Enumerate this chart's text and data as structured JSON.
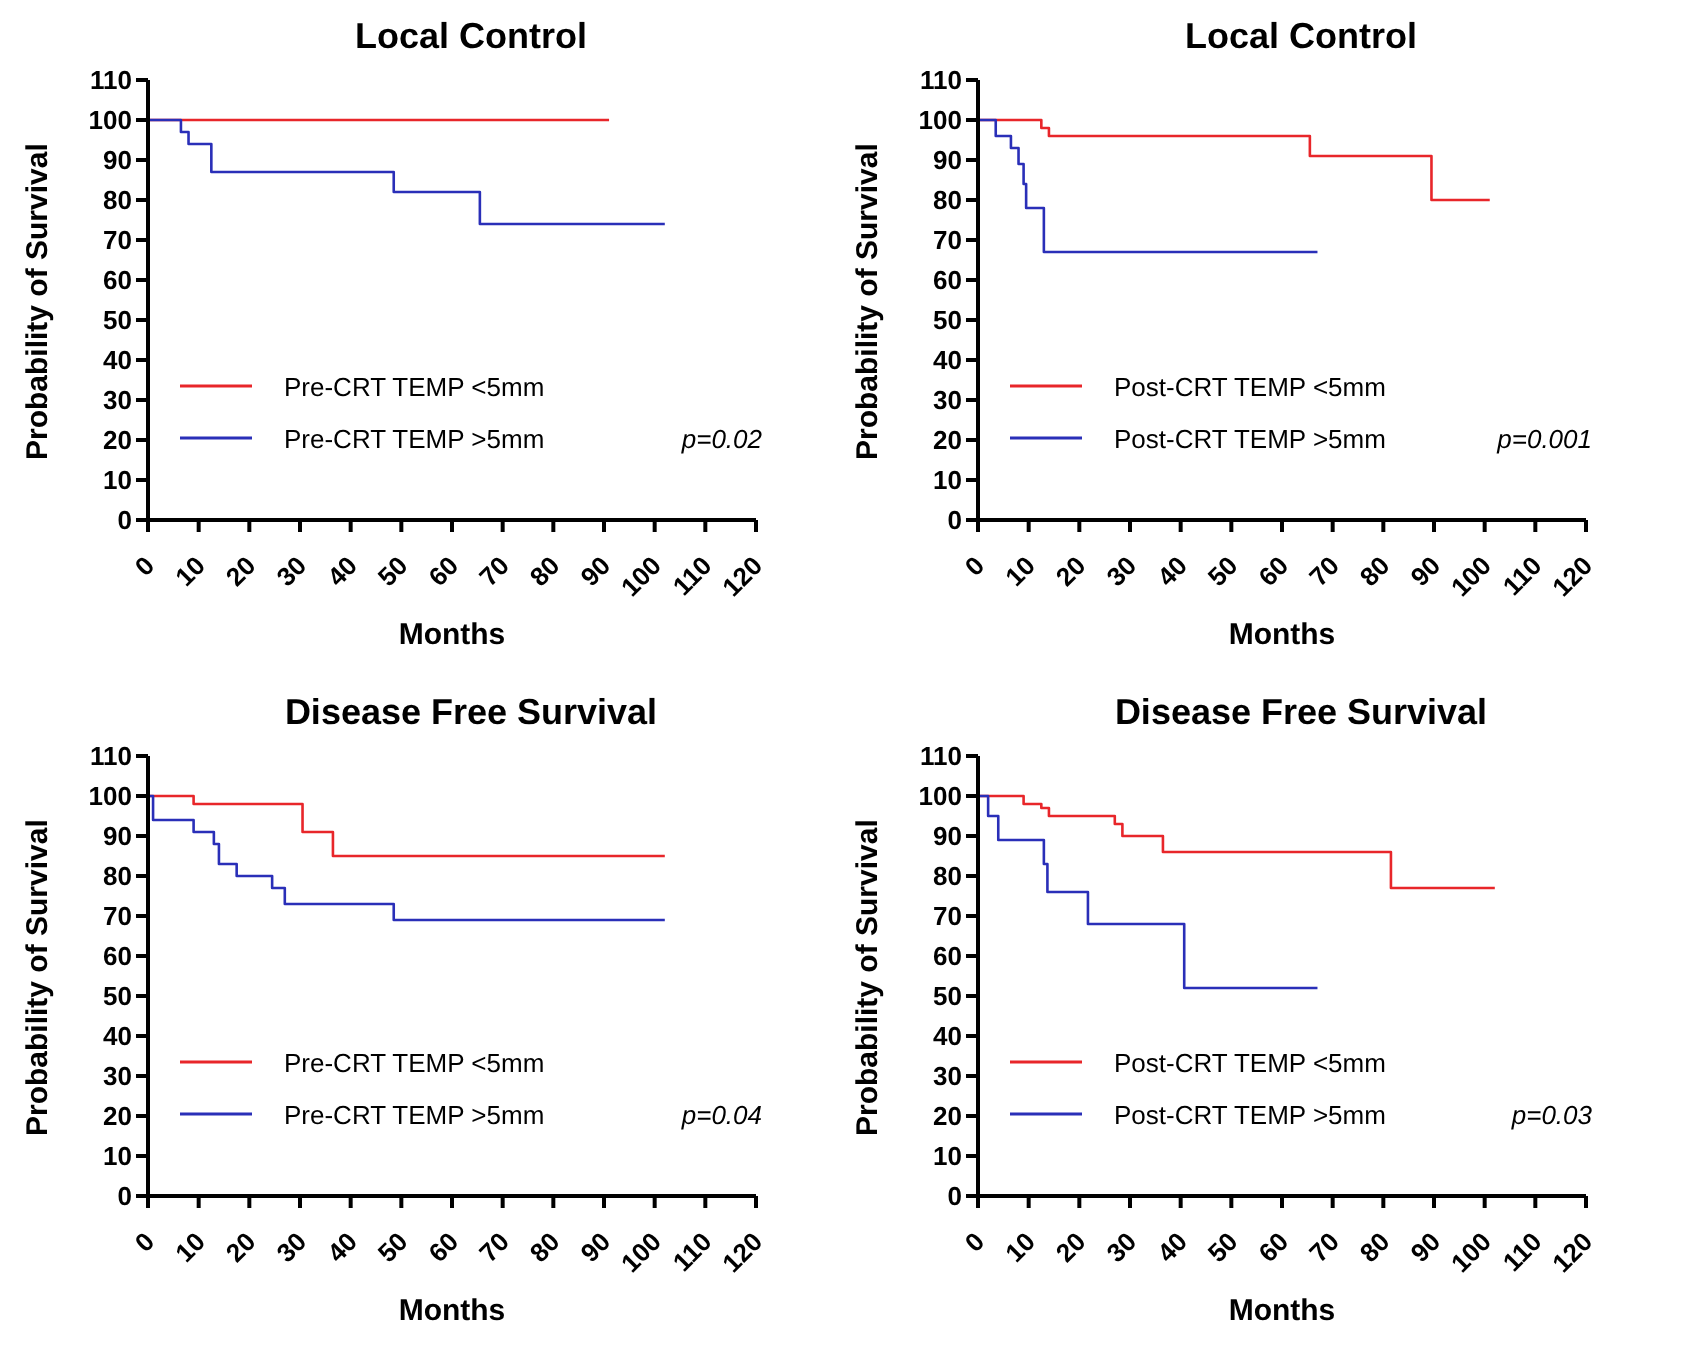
{
  "chart_data": [
    {
      "type": "step",
      "title": "Local Control",
      "xlabel": "Months",
      "ylabel": "Probability of Survival",
      "xlim": [
        0,
        120
      ],
      "xticks": [
        0,
        10,
        20,
        30,
        40,
        50,
        60,
        70,
        80,
        90,
        100,
        110,
        120
      ],
      "ylim": [
        0,
        110
      ],
      "yticks": [
        0,
        10,
        20,
        30,
        40,
        50,
        60,
        70,
        80,
        90,
        100,
        110
      ],
      "grid": false,
      "legend": "bottom left",
      "annotations": [
        "p=0.02"
      ],
      "series": [
        {
          "name": "Pre-CRT TEMP <5mm",
          "color": "#e8262a",
          "x": [
            0,
            91
          ],
          "values": [
            100,
            100
          ]
        },
        {
          "name": "Pre-CRT TEMP >5mm",
          "color": "#2a2fb8",
          "x": [
            0,
            6.5,
            8,
            12.5,
            48.5,
            65.5,
            102
          ],
          "values": [
            100,
            97,
            94,
            87,
            82,
            74,
            74
          ]
        }
      ]
    },
    {
      "type": "step",
      "title": "Local Control",
      "xlabel": "Months",
      "ylabel": "Probability of Survival",
      "xlim": [
        0,
        120
      ],
      "xticks": [
        0,
        10,
        20,
        30,
        40,
        50,
        60,
        70,
        80,
        90,
        100,
        110,
        120
      ],
      "ylim": [
        0,
        110
      ],
      "yticks": [
        0,
        10,
        20,
        30,
        40,
        50,
        60,
        70,
        80,
        90,
        100,
        110
      ],
      "grid": false,
      "legend": "bottom left",
      "annotations": [
        "p=0.001"
      ],
      "series": [
        {
          "name": "Post-CRT TEMP <5mm",
          "color": "#e8262a",
          "x": [
            0,
            12.5,
            14,
            65.5,
            89.5,
            101
          ],
          "values": [
            100,
            98,
            96,
            91,
            80,
            80
          ]
        },
        {
          "name": "Post-CRT TEMP >5mm",
          "color": "#2a2fb8",
          "x": [
            0,
            3.5,
            6.5,
            8,
            9,
            9.5,
            13,
            67
          ],
          "values": [
            100,
            96,
            93,
            89,
            84,
            78,
            67,
            67
          ]
        }
      ]
    },
    {
      "type": "step",
      "title": "Disease Free Survival",
      "xlabel": "Months",
      "ylabel": "Probability of Survival",
      "xlim": [
        0,
        120
      ],
      "xticks": [
        0,
        10,
        20,
        30,
        40,
        50,
        60,
        70,
        80,
        90,
        100,
        110,
        120
      ],
      "ylim": [
        0,
        110
      ],
      "yticks": [
        0,
        10,
        20,
        30,
        40,
        50,
        60,
        70,
        80,
        90,
        100,
        110
      ],
      "grid": false,
      "legend": "bottom left",
      "annotations": [
        "p=0.04"
      ],
      "series": [
        {
          "name": "Pre-CRT TEMP <5mm",
          "color": "#e8262a",
          "x": [
            0,
            9,
            30.5,
            36.5,
            102
          ],
          "values": [
            100,
            98,
            91,
            85,
            85
          ]
        },
        {
          "name": "Pre-CRT TEMP >5mm",
          "color": "#2a2fb8",
          "x": [
            0,
            1,
            9,
            13,
            14,
            17.5,
            24.5,
            27,
            48.5,
            102
          ],
          "values": [
            100,
            94,
            91,
            88,
            83,
            80,
            77,
            73,
            69,
            69
          ]
        }
      ]
    },
    {
      "type": "step",
      "title": "Disease Free Survival",
      "xlabel": "Months",
      "ylabel": "Probability of Survival",
      "xlim": [
        0,
        120
      ],
      "xticks": [
        0,
        10,
        20,
        30,
        40,
        50,
        60,
        70,
        80,
        90,
        100,
        110,
        120
      ],
      "ylim": [
        0,
        110
      ],
      "yticks": [
        0,
        10,
        20,
        30,
        40,
        50,
        60,
        70,
        80,
        90,
        100,
        110
      ],
      "grid": false,
      "legend": "bottom left",
      "annotations": [
        "p=0.03"
      ],
      "series": [
        {
          "name": "Post-CRT TEMP <5mm",
          "color": "#e8262a",
          "x": [
            0,
            9,
            12.5,
            14,
            27,
            28.5,
            36.5,
            81.5,
            102
          ],
          "values": [
            100,
            98,
            97,
            95,
            93,
            90,
            86,
            77,
            77
          ]
        },
        {
          "name": "Post-CRT TEMP >5mm",
          "color": "#2a2fb8",
          "x": [
            0,
            2,
            4,
            13,
            13.7,
            21.7,
            40.7,
            67
          ],
          "values": [
            100,
            95,
            89,
            83,
            76,
            68,
            52,
            52
          ]
        }
      ]
    }
  ]
}
